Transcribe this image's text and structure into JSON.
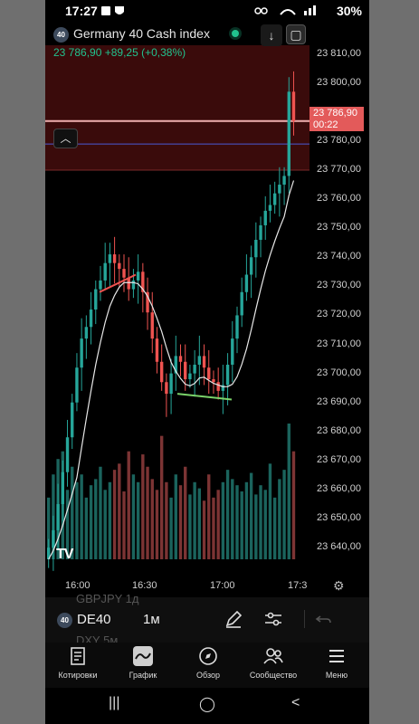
{
  "status": {
    "time": "17:27",
    "battery": "30%"
  },
  "header": {
    "badge": "40",
    "title": "Germany 40 Cash index",
    "price_change": "23 786,90  +89,25 (+0,38%)",
    "down_button": "↓"
  },
  "chart_data": {
    "type": "candlestick",
    "title": "Germany 40 Cash index",
    "x_ticks": [
      "16:00",
      "16:30",
      "17:00",
      "17:3"
    ],
    "y_ticks": [
      "23 810,00",
      "23 800,00",
      "23 790,00",
      "23 780,00",
      "23 770,00",
      "23 760,00",
      "23 750,00",
      "23 740,00",
      "23 730,00",
      "23 720,00",
      "23 710,00",
      "23 700,00",
      "23 690,00",
      "23 680,00",
      "23 670,00",
      "23 660,00",
      "23 650,00",
      "23 640,00"
    ],
    "ylim": [
      23636,
      23813
    ],
    "last_price": 23786.9,
    "countdown": "00:22",
    "close_series": [
      23640,
      23646,
      23655,
      23666,
      23678,
      23690,
      23702,
      23712,
      23716,
      23722,
      23729,
      23732,
      23738,
      23741,
      23738,
      23736,
      23733,
      23729,
      23732,
      23735,
      23728,
      23721,
      23712,
      23704,
      23697,
      23693,
      23700,
      23706,
      23704,
      23698,
      23700,
      23703,
      23706,
      23702,
      23698,
      23697,
      23694,
      23696,
      23703,
      23712,
      23720,
      23728,
      23734,
      23740,
      23746,
      23751,
      23756,
      23758,
      23762,
      23765,
      23768,
      23797,
      23786.9
    ],
    "volume": [
      40,
      55,
      65,
      70,
      45,
      60,
      50,
      55,
      40,
      48,
      52,
      60,
      45,
      50,
      58,
      62,
      44,
      70,
      55,
      50,
      68,
      60,
      52,
      45,
      80,
      50,
      40,
      55,
      48,
      60,
      42,
      50,
      46,
      38,
      55,
      40,
      45,
      50,
      58,
      52,
      48,
      44,
      50,
      56,
      42,
      48,
      45,
      62,
      40,
      52,
      58,
      88,
      70
    ]
  },
  "toolbar": {
    "badge": "40",
    "symbol": "DE40",
    "interval": "1м",
    "ghost_top": "GBPJPY   1д",
    "ghost_bottom": "DXY       5м"
  },
  "nav": {
    "items": [
      {
        "label": "Котировки",
        "icon": "quotes-icon"
      },
      {
        "label": "График",
        "icon": "chart-icon"
      },
      {
        "label": "Обзор",
        "icon": "compass-icon"
      },
      {
        "label": "Сообщество",
        "icon": "community-icon"
      },
      {
        "label": "Меню",
        "icon": "menu-icon"
      }
    ]
  },
  "colors": {
    "up": "#26a69a",
    "down": "#ef5350",
    "accent_green": "#21c28e",
    "price_tag": "#e35a5a"
  }
}
